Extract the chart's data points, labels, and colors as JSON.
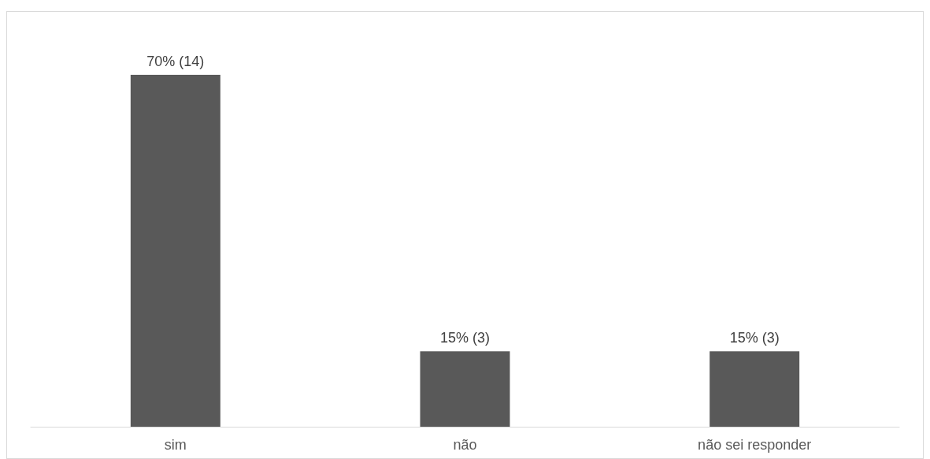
{
  "chart_data": {
    "type": "bar",
    "categories": [
      "sim",
      "não",
      "não sei responder"
    ],
    "values": [
      70,
      15,
      15
    ],
    "value_labels": [
      "70% (14)",
      "15% (3)",
      "15% (3)"
    ],
    "color": "#595959"
  }
}
